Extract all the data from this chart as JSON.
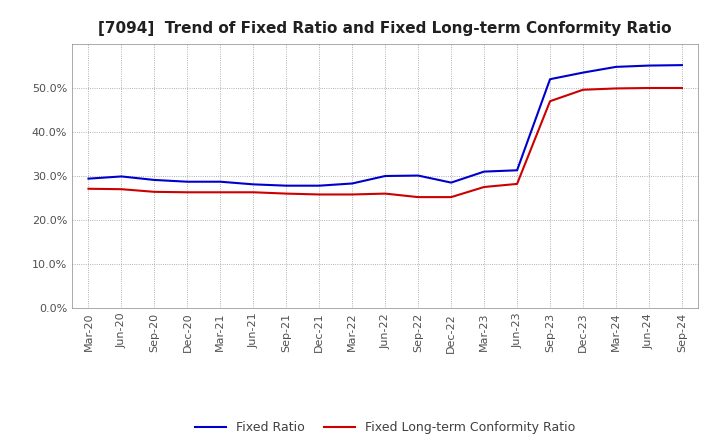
{
  "title": "[7094]  Trend of Fixed Ratio and Fixed Long-term Conformity Ratio",
  "x_labels": [
    "Mar-20",
    "Jun-20",
    "Sep-20",
    "Dec-20",
    "Mar-21",
    "Jun-21",
    "Sep-21",
    "Dec-21",
    "Mar-22",
    "Jun-22",
    "Sep-22",
    "Dec-22",
    "Mar-23",
    "Jun-23",
    "Sep-23",
    "Dec-23",
    "Mar-24",
    "Jun-24",
    "Sep-24"
  ],
  "fixed_ratio": [
    0.294,
    0.299,
    0.291,
    0.287,
    0.287,
    0.281,
    0.278,
    0.278,
    0.283,
    0.3,
    0.301,
    0.285,
    0.31,
    0.313,
    0.52,
    0.535,
    0.548,
    0.551,
    0.552
  ],
  "fixed_lt_ratio": [
    0.271,
    0.27,
    0.264,
    0.263,
    0.263,
    0.263,
    0.26,
    0.258,
    0.258,
    0.26,
    0.252,
    0.252,
    0.275,
    0.282,
    0.47,
    0.496,
    0.499,
    0.5,
    0.5
  ],
  "line_color_fixed": "#0000cc",
  "line_color_lt": "#cc0000",
  "ylim": [
    0.0,
    0.6
  ],
  "yticks": [
    0.0,
    0.1,
    0.2,
    0.3,
    0.4,
    0.5
  ],
  "background_color": "#ffffff",
  "plot_bg_color": "#ffffff",
  "grid_color": "#999999",
  "legend_fixed": "Fixed Ratio",
  "legend_lt": "Fixed Long-term Conformity Ratio",
  "title_fontsize": 11,
  "tick_fontsize": 8,
  "legend_fontsize": 9
}
